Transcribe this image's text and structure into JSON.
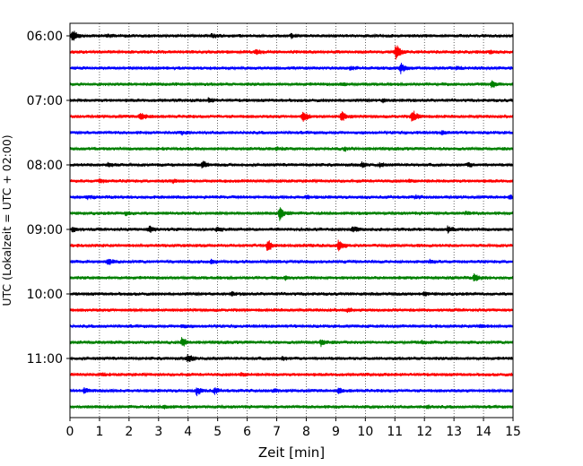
{
  "chart_data": {
    "type": "line",
    "xlabel": "Zeit  [min]",
    "ylabel": "UTC (Lokalzeit = UTC + 02:00)",
    "xlim": [
      0,
      15
    ],
    "x_ticks": [
      0,
      1,
      2,
      3,
      4,
      5,
      6,
      7,
      8,
      9,
      10,
      11,
      12,
      13,
      14,
      15
    ],
    "x_tick_labels": [
      "0",
      "1",
      "2",
      "3",
      "4",
      "5",
      "6",
      "7",
      "8",
      "9",
      "10",
      "11",
      "12",
      "13",
      "14",
      "15"
    ],
    "y_tick_labels": [
      "06:00",
      "07:00",
      "08:00",
      "09:00",
      "10:00",
      "11:00"
    ],
    "vertical_grid": "dotted",
    "colors": [
      "#000000",
      "#ff0000",
      "#0000ff",
      "#008000"
    ],
    "traces": [
      {
        "start": "06:00",
        "color": "#000000",
        "events": [
          [
            0.1,
            6
          ],
          [
            1.3,
            1.5
          ],
          [
            4.8,
            1.5
          ],
          [
            7.5,
            1.5
          ]
        ]
      },
      {
        "start": "06:15",
        "color": "#ff0000",
        "events": [
          [
            6.3,
            2
          ],
          [
            11.05,
            8
          ],
          [
            14.2,
            1.5
          ]
        ]
      },
      {
        "start": "06:30",
        "color": "#0000ff",
        "events": [
          [
            9.5,
            1.5
          ],
          [
            11.2,
            6
          ],
          [
            13.1,
            1.5
          ]
        ]
      },
      {
        "start": "06:45",
        "color": "#008000",
        "events": [
          [
            9.2,
            1.5
          ],
          [
            14.3,
            4
          ]
        ]
      },
      {
        "start": "07:00",
        "color": "#000000",
        "events": [
          [
            4.7,
            2
          ],
          [
            10.6,
            1.5
          ]
        ]
      },
      {
        "start": "07:15",
        "color": "#ff0000",
        "events": [
          [
            2.4,
            4
          ],
          [
            7.9,
            6
          ],
          [
            9.2,
            5
          ],
          [
            11.6,
            8
          ]
        ]
      },
      {
        "start": "07:30",
        "color": "#0000ff",
        "events": [
          [
            3.8,
            1.5
          ],
          [
            12.6,
            1.5
          ]
        ]
      },
      {
        "start": "07:45",
        "color": "#008000",
        "events": [
          [
            7.0,
            1.5
          ],
          [
            9.3,
            2
          ]
        ]
      },
      {
        "start": "08:00",
        "color": "#000000",
        "events": [
          [
            1.3,
            2
          ],
          [
            4.5,
            3.5
          ],
          [
            9.9,
            2
          ],
          [
            10.5,
            2
          ],
          [
            13.5,
            2
          ]
        ]
      },
      {
        "start": "08:15",
        "color": "#ff0000",
        "events": [
          [
            1.0,
            1.5
          ],
          [
            3.5,
            1.5
          ],
          [
            11.5,
            1.5
          ]
        ]
      },
      {
        "start": "08:30",
        "color": "#0000ff",
        "events": [
          [
            0.6,
            1.5
          ],
          [
            8.0,
            1.5
          ],
          [
            11.7,
            1.5
          ],
          [
            14.9,
            1.5
          ]
        ]
      },
      {
        "start": "08:45",
        "color": "#008000",
        "events": [
          [
            1.9,
            2
          ],
          [
            7.1,
            7
          ],
          [
            13.4,
            1.5
          ]
        ]
      },
      {
        "start": "09:00",
        "color": "#000000",
        "events": [
          [
            0.1,
            2.5
          ],
          [
            2.7,
            3.5
          ],
          [
            5.0,
            1.5
          ],
          [
            9.6,
            3
          ],
          [
            12.8,
            3
          ]
        ]
      },
      {
        "start": "09:15",
        "color": "#ff0000",
        "events": [
          [
            6.7,
            6
          ],
          [
            9.1,
            6
          ]
        ]
      },
      {
        "start": "09:30",
        "color": "#0000ff",
        "events": [
          [
            1.3,
            3
          ],
          [
            4.8,
            2
          ],
          [
            12.2,
            1.5
          ]
        ]
      },
      {
        "start": "09:45",
        "color": "#008000",
        "events": [
          [
            7.3,
            1.5
          ],
          [
            13.7,
            4
          ]
        ]
      },
      {
        "start": "10:00",
        "color": "#000000",
        "events": [
          [
            5.5,
            1.5
          ],
          [
            12.0,
            1.5
          ]
        ]
      },
      {
        "start": "10:15",
        "color": "#ff0000",
        "events": [
          [
            9.4,
            1.5
          ]
        ]
      },
      {
        "start": "10:30",
        "color": "#0000ff",
        "events": [
          [
            3.8,
            1.5
          ],
          [
            13.9,
            1.5
          ]
        ]
      },
      {
        "start": "10:45",
        "color": "#008000",
        "events": [
          [
            3.8,
            4.5
          ],
          [
            8.5,
            3.5
          ],
          [
            11.9,
            1.5
          ]
        ]
      },
      {
        "start": "11:00",
        "color": "#000000",
        "events": [
          [
            4.0,
            4
          ],
          [
            7.2,
            1.5
          ]
        ]
      },
      {
        "start": "11:15",
        "color": "#ff0000",
        "events": [
          [
            1.1,
            1.5
          ],
          [
            5.8,
            2
          ]
        ]
      },
      {
        "start": "11:30",
        "color": "#0000ff",
        "events": [
          [
            0.5,
            3
          ],
          [
            4.3,
            4
          ],
          [
            4.9,
            3
          ],
          [
            9.1,
            2.5
          ],
          [
            6.9,
            1.5
          ]
        ]
      },
      {
        "start": "11:45",
        "color": "#008000",
        "events": [
          [
            3.2,
            1.5
          ],
          [
            12.1,
            1.5
          ]
        ]
      }
    ]
  }
}
